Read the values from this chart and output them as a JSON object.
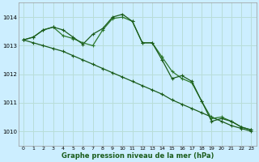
{
  "title": "Graphe pression niveau de la mer (hPa)",
  "background_color": "#cceeff",
  "grid_color": "#b8ddd8",
  "line_color1": "#1a5c1a",
  "line_color2": "#2d7a2d",
  "xlim": [
    -0.5,
    23.5
  ],
  "ylim": [
    1009.5,
    1014.5
  ],
  "yticks": [
    1010,
    1011,
    1012,
    1013,
    1014
  ],
  "xticks": [
    0,
    1,
    2,
    3,
    4,
    5,
    6,
    7,
    8,
    9,
    10,
    11,
    12,
    13,
    14,
    15,
    16,
    17,
    18,
    19,
    20,
    21,
    22,
    23
  ],
  "series_diag": [
    1013.2,
    1013.1,
    1013.0,
    1012.9,
    1012.8,
    1012.65,
    1012.5,
    1012.35,
    1012.2,
    1012.05,
    1011.9,
    1011.75,
    1011.6,
    1011.45,
    1011.3,
    1011.1,
    1010.95,
    1010.8,
    1010.65,
    1010.5,
    1010.35,
    1010.2,
    1010.1,
    1010.0
  ],
  "series_mid": [
    1013.2,
    1013.3,
    1013.55,
    1013.65,
    1013.35,
    1013.25,
    1013.1,
    1013.0,
    1013.55,
    1013.95,
    1014.0,
    1013.85,
    1013.1,
    1013.1,
    1012.6,
    1012.1,
    1011.85,
    1011.7,
    1011.05,
    1010.45,
    1010.5,
    1010.35,
    1010.15,
    1010.05
  ],
  "series_top": [
    1013.2,
    1013.3,
    1013.55,
    1013.65,
    1013.55,
    1013.3,
    1013.05,
    1013.4,
    1013.6,
    1014.0,
    1014.1,
    1013.85,
    1013.1,
    1013.1,
    1012.5,
    1011.85,
    1011.95,
    1011.75,
    1011.05,
    1010.35,
    1010.45,
    1010.35,
    1010.15,
    1010.05
  ]
}
